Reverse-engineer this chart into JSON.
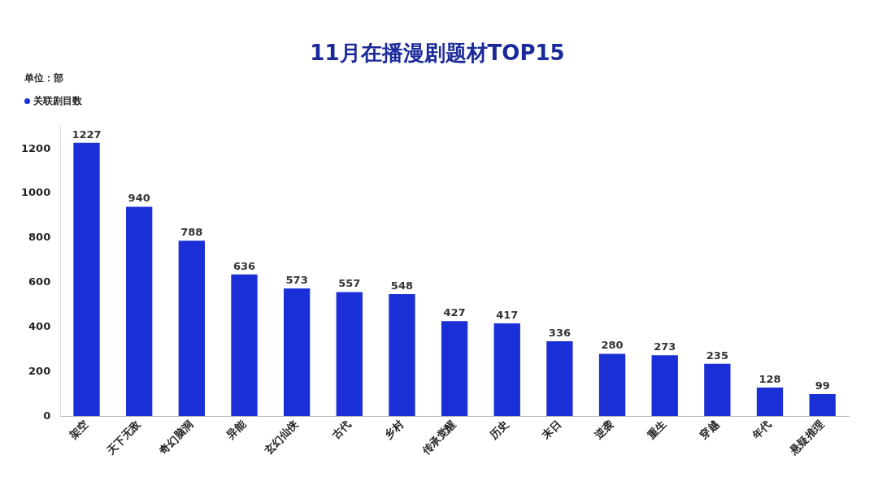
{
  "chart_data": {
    "type": "bar",
    "title": "11月在播漫剧题材TOP15",
    "ylabel": "单位：部",
    "categories": [
      "架空",
      "天下无敌",
      "奇幻脑洞",
      "异能",
      "玄幻仙侠",
      "古代",
      "乡村",
      "传承觉醒",
      "历史",
      "末日",
      "逆袭",
      "重生",
      "穿越",
      "年代",
      "悬疑推理"
    ],
    "series": [
      {
        "name": "关联剧目数",
        "color": "#1a2fd6",
        "values": [
          1227,
          940,
          788,
          636,
          573,
          557,
          548,
          427,
          417,
          336,
          280,
          273,
          235,
          128,
          99
        ]
      }
    ],
    "ylim": [
      0,
      1300
    ],
    "yticks": [
      0,
      200,
      400,
      600,
      800,
      1000,
      1200
    ],
    "grid": false,
    "legend": "top left",
    "data_labels": true
  }
}
